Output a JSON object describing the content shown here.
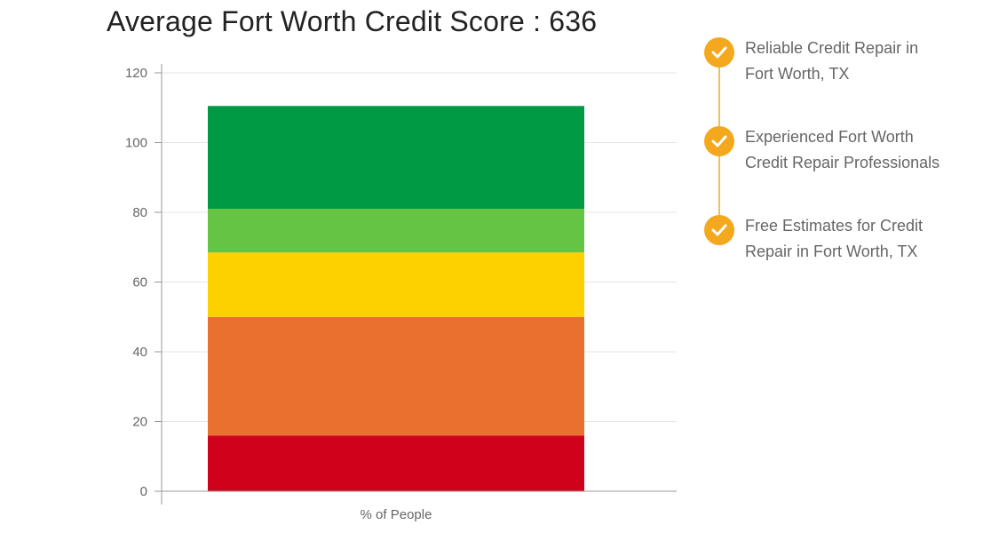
{
  "title": "Average Fort Worth Credit Score : 636",
  "chart_data": {
    "type": "bar",
    "stacked": true,
    "categories": [
      "% of People"
    ],
    "series": [
      {
        "values": [
          16
        ],
        "color": "#d0021b"
      },
      {
        "values": [
          34
        ],
        "color": "#ea7030"
      },
      {
        "values": [
          18.5
        ],
        "color": "#fdd000"
      },
      {
        "values": [
          12.5
        ],
        "color": "#66c444"
      },
      {
        "values": [
          29.5
        ],
        "color": "#009a44"
      }
    ],
    "ylim": [
      0,
      120
    ],
    "yticks": [
      0,
      20,
      40,
      60,
      80,
      100,
      120
    ],
    "grid": true,
    "legend": "none"
  },
  "features": {
    "icon": "check-circle-icon",
    "accent_color": "#f4a81d",
    "items": [
      {
        "line1": "Reliable Credit Repair in",
        "line2": "Fort Worth, TX"
      },
      {
        "line1": "Experienced Fort Worth",
        "line2": "Credit Repair Professionals"
      },
      {
        "line1": "Free Estimates for Credit",
        "line2": "Repair in Fort Worth, TX"
      }
    ]
  }
}
